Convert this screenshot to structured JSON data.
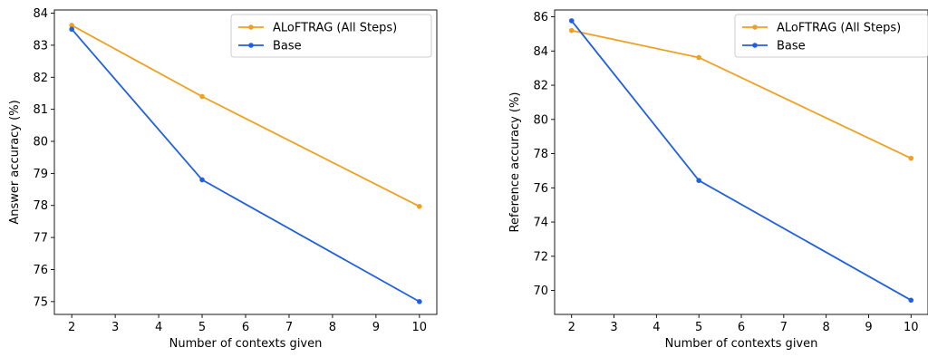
{
  "chart_data": [
    {
      "type": "line",
      "x": [
        2,
        5,
        10
      ],
      "series": [
        {
          "name": "ALoFTRAG (All Steps)",
          "values": [
            83.62,
            81.4,
            77.97
          ],
          "color": "#f0a020"
        },
        {
          "name": "Base",
          "values": [
            83.5,
            78.8,
            75.0
          ],
          "color": "#2060e0"
        }
      ],
      "xlabel": "Number of contexts given",
      "ylabel": "Answer accuracy (%)",
      "xlim": [
        1.6,
        10.4
      ],
      "ylim": [
        74.6,
        84.1
      ],
      "xticks": [
        2,
        3,
        4,
        5,
        6,
        7,
        8,
        9,
        10
      ],
      "yticks": [
        75,
        76,
        77,
        78,
        79,
        80,
        81,
        82,
        83,
        84
      ],
      "legend": "top-right",
      "grid": false
    },
    {
      "type": "line",
      "x": [
        2,
        5,
        10
      ],
      "series": [
        {
          "name": "ALoFTRAG (All Steps)",
          "values": [
            85.2,
            83.62,
            77.73
          ],
          "color": "#f0a020"
        },
        {
          "name": "Base",
          "values": [
            85.77,
            76.43,
            69.43
          ],
          "color": "#2060e0"
        }
      ],
      "xlabel": "Number of contexts given",
      "ylabel": "Reference accuracy (%)",
      "xlim": [
        1.6,
        10.4
      ],
      "ylim": [
        68.6,
        86.4
      ],
      "xticks": [
        2,
        3,
        4,
        5,
        6,
        7,
        8,
        9,
        10
      ],
      "yticks": [
        70,
        72,
        74,
        76,
        78,
        80,
        82,
        84,
        86
      ],
      "legend": "top-right",
      "grid": false
    }
  ]
}
